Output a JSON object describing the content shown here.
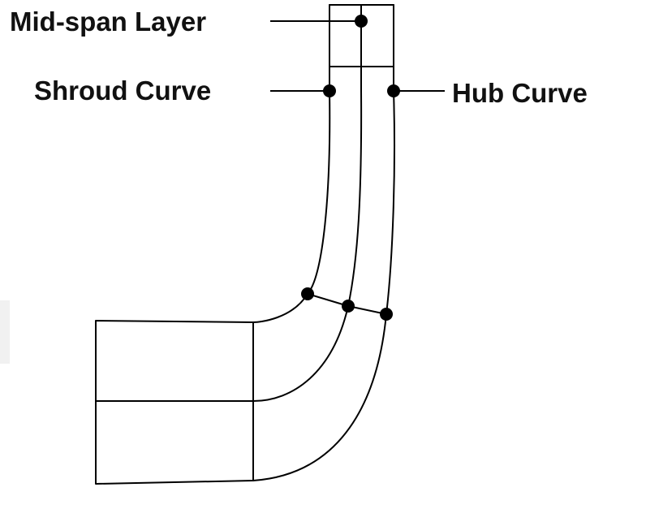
{
  "labels": {
    "midspan": "Mid-span Layer",
    "shroud": "Shroud Curve",
    "hub": "Hub Curve"
  }
}
